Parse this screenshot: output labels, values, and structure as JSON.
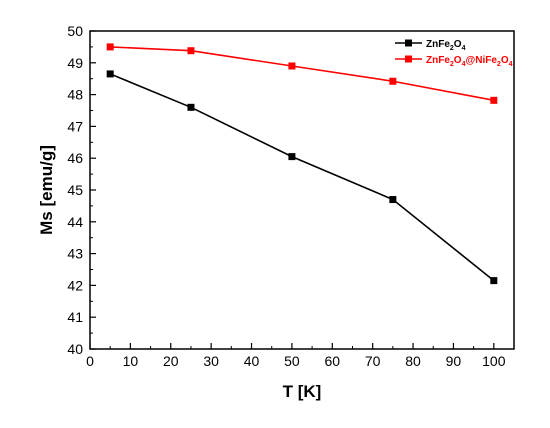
{
  "chart_data": {
    "type": "line",
    "xlabel": "T [K]",
    "ylabel": "Ms [emu/g]",
    "xlim": [
      0,
      105
    ],
    "ylim": [
      40,
      50
    ],
    "xticks": [
      0,
      10,
      20,
      30,
      40,
      50,
      60,
      70,
      80,
      90,
      100
    ],
    "yticks": [
      40,
      41,
      42,
      43,
      44,
      45,
      46,
      47,
      48,
      49,
      50
    ],
    "x": [
      5,
      25,
      50,
      75,
      100
    ],
    "legend_position": "top-right",
    "grid": false,
    "series": [
      {
        "name": "ZnFe2O4",
        "label_parts": [
          "ZnFe",
          "2",
          "O",
          "4"
        ],
        "color": "#000000",
        "marker": "square",
        "values": [
          48.65,
          47.6,
          46.05,
          44.7,
          42.15
        ]
      },
      {
        "name": "ZnFe2O4@NiFe2O4",
        "label_parts": [
          "ZnFe",
          "2",
          "O",
          "4",
          "@NiFe",
          "2",
          "O",
          "4"
        ],
        "color": "#ff0000",
        "marker": "square",
        "values": [
          49.5,
          49.38,
          48.9,
          48.42,
          47.82
        ]
      }
    ]
  }
}
